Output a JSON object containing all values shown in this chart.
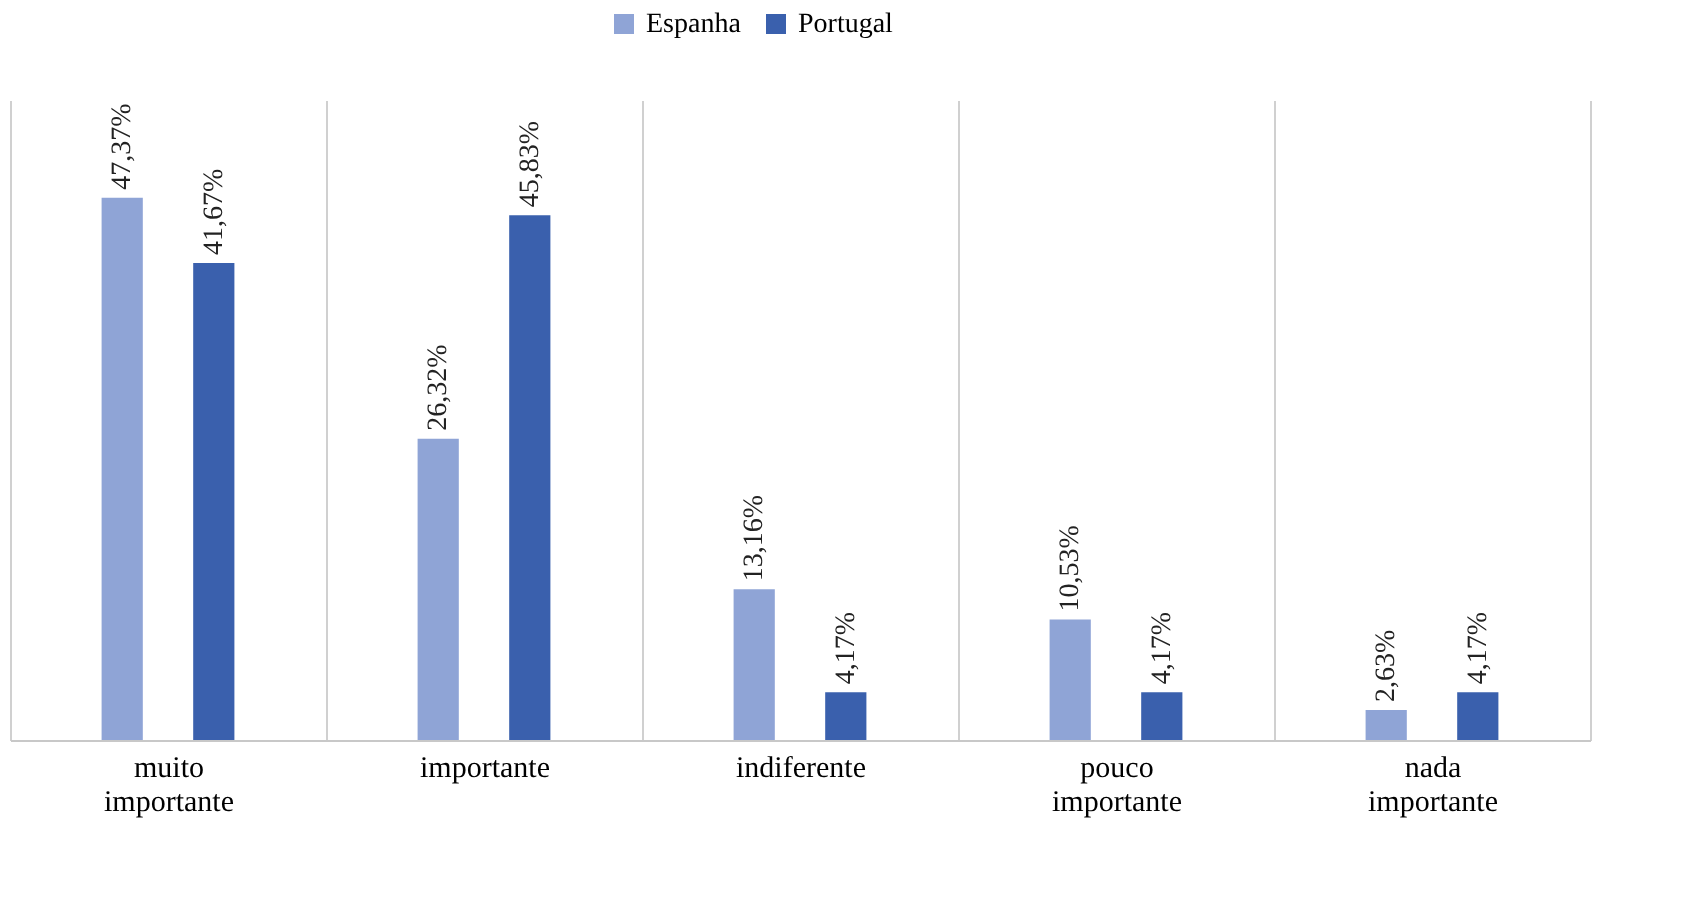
{
  "chart_data": {
    "type": "bar",
    "categories": [
      "muito importante",
      "importante",
      "indiferente",
      "pouco importante",
      "nada importante"
    ],
    "series": [
      {
        "name": "Espanha",
        "color": "#8fa4d6",
        "values": [
          47.37,
          26.32,
          13.16,
          10.53,
          2.63
        ],
        "value_labels": [
          "47,37%",
          "26,32%",
          "13,16%",
          "10,53%",
          "2,63%"
        ]
      },
      {
        "name": "Portugal",
        "color": "#3a60ad",
        "values": [
          41.67,
          45.83,
          4.17,
          4.17,
          4.17
        ],
        "value_labels": [
          "41,67%",
          "45,83%",
          "4,17%",
          "4,17%",
          "4,17%"
        ]
      }
    ],
    "grid": "x",
    "legend": "top"
  }
}
